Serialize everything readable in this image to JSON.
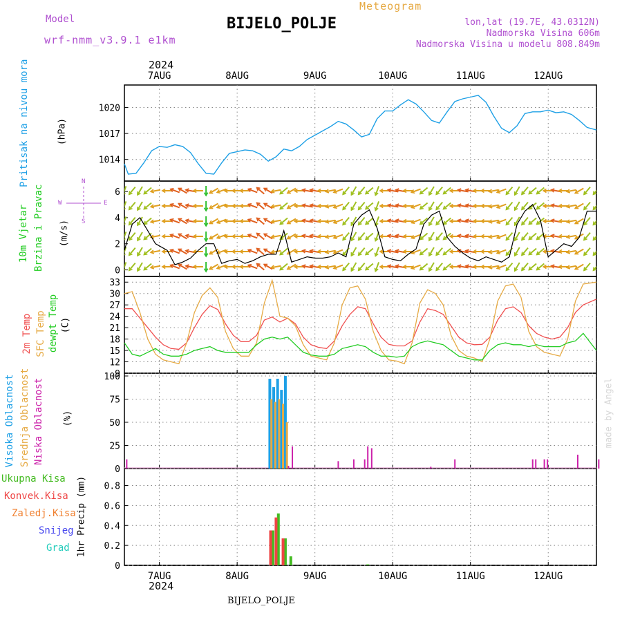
{
  "header": {
    "title": "BIJELO_POLJE",
    "meteogram_label": "Meteogram",
    "model_label": "Model",
    "model_name": "wrf-nmm_v3.9.1  e1km",
    "lonlat": "lon,lat (19.7E, 43.0312N)",
    "altitude": "Nadmorska Visina 606m",
    "model_altitude": "Nadmorska Visina u modelu 808.849m",
    "year_top": "2024",
    "year_bottom": "2024",
    "footer_station": "BIJELO_POLJE",
    "credit": "made by Angel"
  },
  "colors": {
    "pressure": "#1ea0e6",
    "wind_label": "#22cc22",
    "t2m": "#f05050",
    "sfc": "#e6aa44",
    "dewpt": "#22cc22",
    "high_cloud": "#1ea0e6",
    "mid_cloud": "#e6aa44",
    "low_cloud": "#cc22aa",
    "total_precip": "#44bb22",
    "conv_precip": "#ee4444",
    "frozen": "#f08030",
    "snow": "#4444ee",
    "graupel": "#22ccbb",
    "purple_text": "#b050d0",
    "orange_text": "#e6aa44"
  },
  "panel_labels": {
    "pressure": {
      "name": "Pritisak na nivou mora",
      "unit": "(hPa)"
    },
    "wind": {
      "name1": "10m Vjetar",
      "name2": "Brzina i Pravac",
      "unit": "(m/s)",
      "compass": "N",
      "w": "W",
      "e": "E",
      "s": "S"
    },
    "temp": {
      "t2m": "2m Temp",
      "sfc": "SFC Temp",
      "dewpt": "dewpt Temp",
      "unit": "(C)"
    },
    "cloud": {
      "high": "Visoka Oblacnost",
      "mid": "Srednja Oblacnost",
      "low": "Niska Oblacnost",
      "unit": "(%)"
    },
    "precip": {
      "total": "Ukupna Kisa",
      "conv": "Konvek.Kisa",
      "frozen": "Zaledj.Kisa",
      "snow": "Snijeg",
      "grad": "Grad",
      "unit": "1hr Precip (mm)"
    }
  },
  "chart_data": {
    "type": "line",
    "x_unit": "day index (0 = 7AUG 00UTC)",
    "xlim": [
      -0.45,
      5.62
    ],
    "x_ticks": [
      0,
      1,
      2,
      3,
      4,
      5
    ],
    "x_tick_labels": [
      "7AUG",
      "8AUG",
      "9AUG",
      "10AUG",
      "11AUG",
      "12AUG"
    ],
    "pressure": {
      "ylim": [
        1011.5,
        1022.6
      ],
      "y_ticks": [
        1014,
        1017,
        1020
      ],
      "x": [
        -0.45,
        -0.4,
        -0.3,
        -0.2,
        -0.1,
        0,
        0.1,
        0.2,
        0.3,
        0.4,
        0.5,
        0.6,
        0.7,
        0.8,
        0.9,
        1.0,
        1.1,
        1.2,
        1.3,
        1.4,
        1.5,
        1.6,
        1.7,
        1.8,
        1.9,
        2.0,
        2.1,
        2.2,
        2.3,
        2.4,
        2.5,
        2.6,
        2.7,
        2.8,
        2.9,
        3.0,
        3.1,
        3.2,
        3.3,
        3.4,
        3.5,
        3.6,
        3.7,
        3.8,
        3.9,
        4.0,
        4.1,
        4.2,
        4.3,
        4.4,
        4.5,
        4.6,
        4.7,
        4.8,
        4.9,
        5.0,
        5.1,
        5.2,
        5.3,
        5.4,
        5.5,
        5.62
      ],
      "values": [
        1013.5,
        1012.3,
        1012.4,
        1013.6,
        1015.0,
        1015.5,
        1015.4,
        1015.7,
        1015.5,
        1014.8,
        1013.5,
        1012.4,
        1012.3,
        1013.6,
        1014.7,
        1014.9,
        1015.1,
        1015.0,
        1014.6,
        1013.8,
        1014.3,
        1015.2,
        1015.0,
        1015.5,
        1016.3,
        1016.8,
        1017.3,
        1017.8,
        1018.4,
        1018.1,
        1017.4,
        1016.6,
        1016.9,
        1018.7,
        1019.6,
        1019.6,
        1020.3,
        1020.9,
        1020.4,
        1019.5,
        1018.5,
        1018.2,
        1019.5,
        1020.7,
        1021.0,
        1021.2,
        1021.4,
        1020.6,
        1019.0,
        1017.6,
        1017.1,
        1017.9,
        1019.3,
        1019.5,
        1019.5,
        1019.7,
        1019.4,
        1019.5,
        1019.2,
        1018.5,
        1017.7,
        1017.4
      ]
    },
    "wind": {
      "ylim": [
        -0.5,
        6.8
      ],
      "y_ticks": [
        0,
        2,
        4,
        6
      ],
      "x": [
        -0.45,
        -0.35,
        -0.25,
        -0.15,
        -0.05,
        0.1,
        0.2,
        0.3,
        0.4,
        0.5,
        0.6,
        0.7,
        0.8,
        0.9,
        1.0,
        1.1,
        1.2,
        1.3,
        1.4,
        1.5,
        1.6,
        1.7,
        1.8,
        1.9,
        2.0,
        2.1,
        2.2,
        2.3,
        2.4,
        2.5,
        2.6,
        2.7,
        2.8,
        2.9,
        3.0,
        3.1,
        3.2,
        3.3,
        3.4,
        3.5,
        3.6,
        3.7,
        3.8,
        3.9,
        4.0,
        4.1,
        4.2,
        4.3,
        4.4,
        4.5,
        4.6,
        4.7,
        4.8,
        4.9,
        5.0,
        5.1,
        5.2,
        5.3,
        5.4,
        5.5,
        5.62
      ],
      "speed": [
        1.5,
        3.5,
        4.0,
        3.0,
        2.0,
        1.5,
        0.4,
        0.6,
        0.9,
        1.5,
        2.0,
        2.0,
        0.5,
        0.7,
        0.8,
        0.5,
        0.7,
        1.0,
        1.2,
        1.2,
        3.0,
        0.6,
        0.8,
        1.0,
        0.9,
        0.9,
        1.0,
        1.3,
        1.0,
        3.5,
        4.2,
        4.6,
        3.2,
        1.0,
        0.8,
        0.7,
        1.2,
        1.6,
        3.5,
        4.2,
        4.5,
        2.5,
        1.8,
        1.3,
        0.9,
        0.7,
        1.0,
        0.8,
        0.6,
        1.0,
        3.5,
        4.5,
        5.0,
        3.8,
        1.0,
        1.5,
        2.0,
        1.8,
        2.5,
        4.5,
        4.5
      ],
      "direction": [
        200,
        220,
        210,
        230,
        260,
        270,
        290,
        300,
        280,
        270,
        180,
        240,
        250,
        270,
        270,
        270,
        290,
        310,
        300,
        260,
        230,
        240,
        270,
        280,
        280,
        270,
        260,
        250,
        220,
        210,
        220,
        230,
        200,
        270,
        280,
        280,
        270,
        250,
        230,
        210,
        220,
        230,
        270,
        280,
        280,
        270,
        270,
        260,
        250,
        220,
        210,
        220,
        230,
        230,
        270,
        280,
        270,
        260,
        240,
        220,
        220
      ]
    },
    "temperature": {
      "ylim": [
        9,
        34.5
      ],
      "y_ticks": [
        9,
        12,
        15,
        18,
        21,
        24,
        27,
        30,
        33
      ],
      "series": [
        {
          "name": "2m Temp",
          "x": [
            -0.45,
            -0.35,
            -0.25,
            -0.15,
            -0.05,
            0.05,
            0.15,
            0.25,
            0.35,
            0.45,
            0.55,
            0.65,
            0.75,
            0.85,
            0.95,
            1.05,
            1.15,
            1.25,
            1.35,
            1.45,
            1.55,
            1.65,
            1.75,
            1.85,
            1.95,
            2.05,
            2.15,
            2.25,
            2.35,
            2.45,
            2.55,
            2.65,
            2.75,
            2.85,
            2.95,
            3.05,
            3.15,
            3.25,
            3.35,
            3.45,
            3.55,
            3.65,
            3.75,
            3.85,
            3.95,
            4.05,
            4.15,
            4.25,
            4.35,
            4.45,
            4.55,
            4.65,
            4.75,
            4.85,
            4.95,
            5.05,
            5.15,
            5.25,
            5.35,
            5.45,
            5.62
          ],
          "values": [
            26,
            26,
            23.5,
            21,
            18.5,
            16.5,
            15.5,
            15.3,
            17,
            21,
            24.5,
            26.8,
            25.8,
            22,
            19,
            17.3,
            17.3,
            19,
            23,
            23.8,
            22.5,
            23.5,
            22,
            18.5,
            16.5,
            15.8,
            15.5,
            17.5,
            21.5,
            24.5,
            26.5,
            26,
            22,
            18.5,
            16.6,
            16.2,
            16.2,
            17.5,
            22.5,
            26,
            25.5,
            24.5,
            21.5,
            18.5,
            17,
            16.5,
            16.6,
            18.5,
            23,
            26,
            26.5,
            25,
            21.5,
            19.5,
            18.5,
            18,
            18.5,
            21,
            25,
            27,
            28.5
          ]
        },
        {
          "name": "SFC Temp",
          "x": [
            -0.45,
            -0.35,
            -0.25,
            -0.15,
            -0.05,
            0.05,
            0.15,
            0.25,
            0.35,
            0.45,
            0.55,
            0.65,
            0.75,
            0.85,
            0.95,
            1.05,
            1.15,
            1.25,
            1.35,
            1.45,
            1.55,
            1.65,
            1.75,
            1.85,
            1.95,
            2.05,
            2.15,
            2.25,
            2.35,
            2.45,
            2.55,
            2.65,
            2.75,
            2.85,
            2.95,
            3.05,
            3.15,
            3.25,
            3.35,
            3.45,
            3.55,
            3.65,
            3.75,
            3.85,
            3.95,
            4.05,
            4.15,
            4.25,
            4.35,
            4.45,
            4.55,
            4.65,
            4.75,
            4.85,
            4.95,
            5.05,
            5.15,
            5.25,
            5.35,
            5.45,
            5.62
          ],
          "values": [
            30,
            30.5,
            25,
            18,
            14,
            12.5,
            12,
            11.5,
            17,
            25,
            29.5,
            31.5,
            29,
            20,
            15.5,
            13.5,
            13.5,
            17,
            27.5,
            33.5,
            24,
            23.5,
            21.5,
            16.5,
            13.5,
            13,
            12.5,
            17,
            27,
            31.5,
            32,
            28.5,
            20,
            15,
            12.5,
            12.2,
            11.5,
            17,
            27.5,
            31,
            30,
            27,
            19,
            15,
            13.5,
            13,
            12,
            18,
            28,
            32,
            32.5,
            29,
            20,
            16,
            14.5,
            14,
            13.5,
            18,
            28,
            32.5,
            33
          ]
        },
        {
          "name": "dewpt Temp",
          "x": [
            -0.45,
            -0.35,
            -0.25,
            -0.15,
            -0.05,
            0.05,
            0.15,
            0.25,
            0.35,
            0.45,
            0.55,
            0.65,
            0.75,
            0.85,
            0.95,
            1.05,
            1.15,
            1.25,
            1.35,
            1.45,
            1.55,
            1.65,
            1.75,
            1.85,
            1.95,
            2.05,
            2.15,
            2.25,
            2.35,
            2.45,
            2.55,
            2.65,
            2.75,
            2.85,
            2.95,
            3.05,
            3.15,
            3.25,
            3.35,
            3.45,
            3.55,
            3.65,
            3.75,
            3.85,
            3.95,
            4.05,
            4.15,
            4.25,
            4.35,
            4.45,
            4.55,
            4.65,
            4.75,
            4.85,
            4.95,
            5.05,
            5.15,
            5.25,
            5.35,
            5.45,
            5.62
          ],
          "values": [
            17,
            14,
            13.5,
            14.5,
            15.5,
            14,
            13.5,
            13.5,
            14,
            15,
            15.5,
            16,
            15,
            14.5,
            14.5,
            14.5,
            14.5,
            16.5,
            18,
            18.5,
            18,
            18.5,
            16.5,
            14.5,
            13.8,
            13.5,
            13.5,
            14,
            15.5,
            16,
            16.5,
            16,
            14.5,
            13.5,
            13.5,
            13.2,
            13.5,
            16,
            17,
            17.5,
            17,
            16.5,
            15,
            13.5,
            13,
            12.5,
            12.5,
            15,
            16.5,
            17,
            16.5,
            16.5,
            16,
            16.5,
            16,
            16,
            16,
            17,
            17.5,
            19.5,
            15
          ]
        }
      ]
    },
    "clouds": {
      "ylim": [
        0,
        103
      ],
      "y_ticks": [
        0,
        25,
        50,
        75,
        100
      ],
      "series": [
        {
          "name": "Visoka Oblacnost",
          "x": [
            1.42,
            1.47,
            1.52,
            1.57,
            1.62
          ],
          "values": [
            97,
            88,
            97,
            85,
            100
          ]
        },
        {
          "name": "Srednja Oblacnost",
          "x": [
            1.44,
            1.49,
            1.54,
            1.59,
            1.64
          ],
          "values": [
            75,
            72,
            75,
            70,
            50
          ]
        },
        {
          "name": "Niska Oblacnost",
          "x": [
            -0.42,
            1.66,
            1.71,
            2.3,
            2.5,
            2.64,
            2.68,
            2.73,
            3.49,
            3.8,
            4.8,
            4.84,
            4.95,
            4.99,
            5.38,
            5.65
          ],
          "values": [
            10,
            3,
            24,
            8,
            10,
            10,
            24,
            22,
            2,
            10,
            10,
            10,
            10,
            10,
            15,
            10
          ]
        }
      ]
    },
    "precipitation": {
      "ylim": [
        0,
        0.97
      ],
      "y_ticks": [
        0,
        0.2,
        0.4,
        0.6,
        0.8
      ],
      "series": [
        {
          "name": "Ukupna Kisa",
          "x": [
            1.46,
            1.53,
            1.62,
            1.69,
            2.68
          ],
          "values": [
            0.35,
            0.52,
            0.27,
            0.09,
            0.01
          ]
        },
        {
          "name": "Konvek.Kisa",
          "x": [
            1.43,
            1.5,
            1.59
          ],
          "values": [
            0.35,
            0.48,
            0.27
          ]
        }
      ]
    }
  }
}
